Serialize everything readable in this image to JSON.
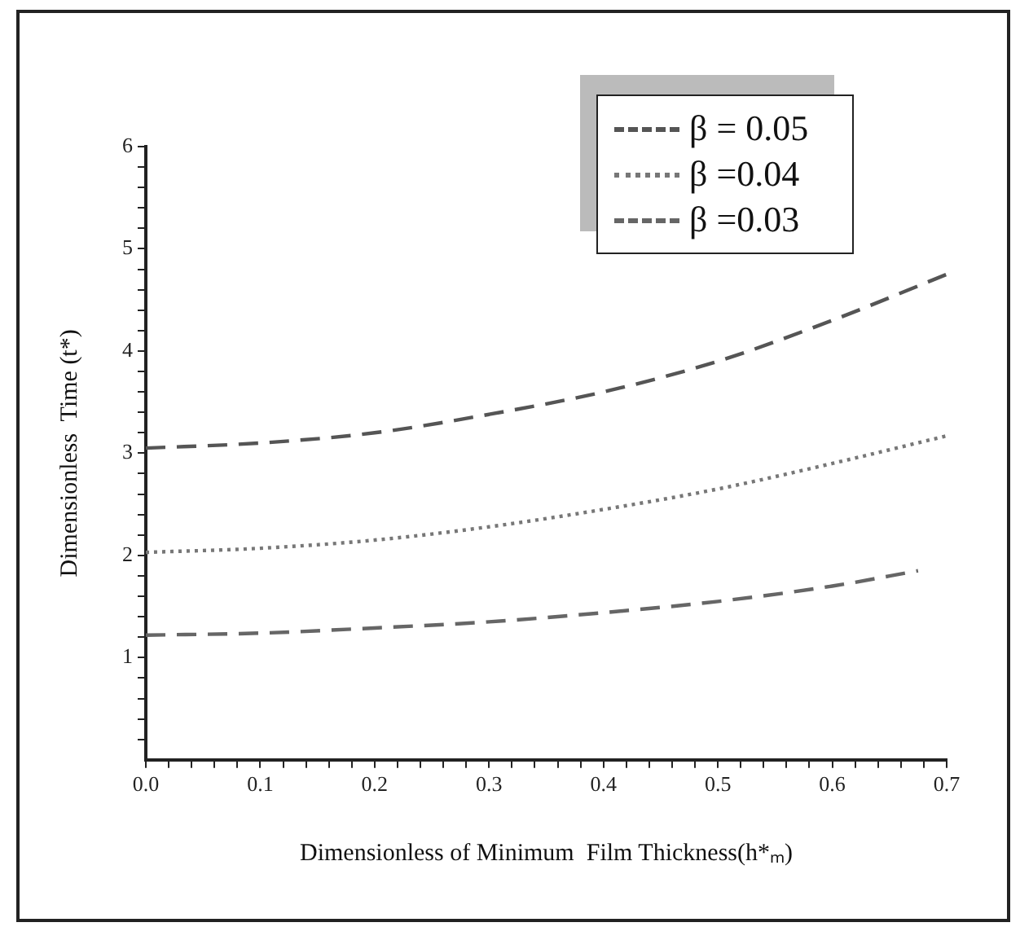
{
  "chart_data": {
    "type": "line",
    "xlabel": "Dimensionless of Minimum  Film Thickness(h*ₘ)",
    "ylabel": "Dimensionless  Time (t*)",
    "xlim": [
      0,
      0.7
    ],
    "xticks": [
      {
        "value": 0,
        "label": "0.0"
      },
      {
        "value": 0.02,
        "label": null
      },
      {
        "value": 0.04,
        "label": null
      },
      {
        "value": 0.06,
        "label": null
      },
      {
        "value": 0.08,
        "label": null
      },
      {
        "value": 0.1,
        "label": "0.1"
      },
      {
        "value": 0.12,
        "label": null
      },
      {
        "value": 0.14,
        "label": null
      },
      {
        "value": 0.16,
        "label": null
      },
      {
        "value": 0.18,
        "label": null
      },
      {
        "value": 0.2,
        "label": "0.2"
      },
      {
        "value": 0.22,
        "label": null
      },
      {
        "value": 0.24,
        "label": null
      },
      {
        "value": 0.26,
        "label": null
      },
      {
        "value": 0.28,
        "label": null
      },
      {
        "value": 0.3,
        "label": "0.3"
      },
      {
        "value": 0.32,
        "label": null
      },
      {
        "value": 0.34,
        "label": null
      },
      {
        "value": 0.36,
        "label": null
      },
      {
        "value": 0.38,
        "label": null
      },
      {
        "value": 0.4,
        "label": "0.4"
      },
      {
        "value": 0.42,
        "label": null
      },
      {
        "value": 0.44,
        "label": null
      },
      {
        "value": 0.46,
        "label": null
      },
      {
        "value": 0.48,
        "label": null
      },
      {
        "value": 0.5,
        "label": "0.5"
      },
      {
        "value": 0.52,
        "label": null
      },
      {
        "value": 0.54,
        "label": null
      },
      {
        "value": 0.56,
        "label": null
      },
      {
        "value": 0.58,
        "label": null
      },
      {
        "value": 0.6,
        "label": "0.6"
      },
      {
        "value": 0.62,
        "label": null
      },
      {
        "value": 0.64,
        "label": null
      },
      {
        "value": 0.66,
        "label": null
      },
      {
        "value": 0.68,
        "label": null
      },
      {
        "value": 0.7,
        "label": "0.7"
      }
    ],
    "ylim": [
      0,
      6
    ],
    "yticks": [
      {
        "value": 0.2,
        "label": null
      },
      {
        "value": 0.4,
        "label": null
      },
      {
        "value": 0.6,
        "label": null
      },
      {
        "value": 0.8,
        "label": null
      },
      1,
      {
        "value": 1.2,
        "label": null
      },
      {
        "value": 1.4,
        "label": null
      },
      {
        "value": 1.6,
        "label": null
      },
      {
        "value": 1.8,
        "label": null
      },
      2,
      {
        "value": 2.2,
        "label": null
      },
      {
        "value": 2.4,
        "label": null
      },
      {
        "value": 2.6,
        "label": null
      },
      {
        "value": 2.8,
        "label": null
      },
      3,
      {
        "value": 3.2,
        "label": null
      },
      {
        "value": 3.4,
        "label": null
      },
      {
        "value": 3.6,
        "label": null
      },
      {
        "value": 3.8,
        "label": null
      },
      4,
      {
        "value": 4.2,
        "label": null
      },
      {
        "value": 4.4,
        "label": null
      },
      {
        "value": 4.6,
        "label": null
      },
      {
        "value": 4.8,
        "label": null
      },
      5,
      {
        "value": 5.2,
        "label": null
      },
      {
        "value": 5.4,
        "label": null
      },
      {
        "value": 5.6,
        "label": null
      },
      {
        "value": 5.8,
        "label": null
      },
      6
    ],
    "grid": false,
    "legend": "top right",
    "marker": "none",
    "series": [
      {
        "name": "β = 0.05",
        "color": "#555555",
        "line_style": "dashed",
        "x": [
          0,
          0.1,
          0.2,
          0.3,
          0.4,
          0.5,
          0.6,
          0.7
        ],
        "values": [
          3.05,
          3.1,
          3.2,
          3.38,
          3.6,
          3.9,
          4.3,
          4.75
        ]
      },
      {
        "name": "β =0.04",
        "color": "#777777",
        "line_style": "dotted",
        "x": [
          0,
          0.1,
          0.2,
          0.3,
          0.4,
          0.5,
          0.6,
          0.7
        ],
        "values": [
          2.03,
          2.07,
          2.15,
          2.28,
          2.45,
          2.65,
          2.9,
          3.17
        ]
      },
      {
        "name": "β =0.03",
        "color": "#666666",
        "line_style": "dashed",
        "x": [
          0,
          0.1,
          0.2,
          0.3,
          0.4,
          0.5,
          0.6,
          0.675
        ],
        "values": [
          1.22,
          1.24,
          1.29,
          1.35,
          1.44,
          1.55,
          1.7,
          1.85
        ]
      }
    ]
  }
}
